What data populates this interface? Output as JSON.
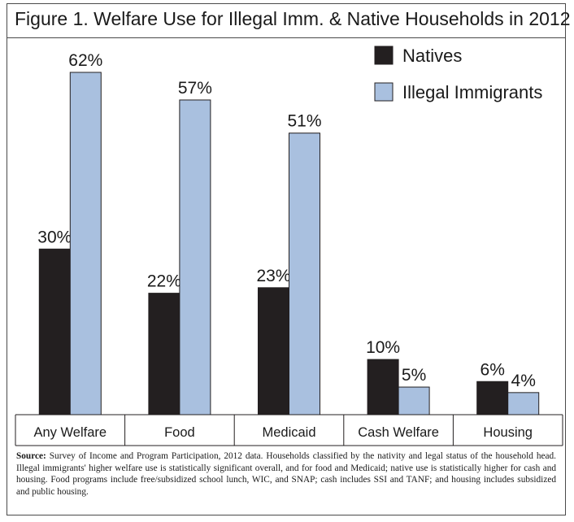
{
  "title": "Figure 1. Welfare Use for Illegal Imm. & Native Households in 2012",
  "source": {
    "label": "Source:",
    "text": "Survey of Income and Program Participation, 2012 data. Households classified by the nativity and legal status of the household head. Illegal immigrants' higher welfare use is statistically significant overall, and for food and Medicaid; native use is statistically higher for cash and housing. Food programs include free/subsidized school lunch, WIC, and SNAP; cash includes SSI and TANF; and housing includes subsidized and public housing."
  },
  "chart_data": {
    "type": "bar",
    "title": "Figure 1. Welfare Use for Illegal Imm. & Native Households in 2012",
    "categories": [
      "Any Welfare",
      "Food",
      "Medicaid",
      "Cash Welfare",
      "Housing"
    ],
    "series": [
      {
        "name": "Natives",
        "values": [
          30,
          22,
          23,
          10,
          6
        ],
        "labels": [
          "30%",
          "22%",
          "23%",
          "10%",
          "6%"
        ],
        "color": "#231f20"
      },
      {
        "name": "Illegal Immigrants",
        "values": [
          62,
          57,
          51,
          5,
          4
        ],
        "labels": [
          "62%",
          "57%",
          "51%",
          "5%",
          "4%"
        ],
        "color": "#a9c0df"
      }
    ],
    "ylim": [
      0,
      62
    ],
    "xlabel": "",
    "ylabel": "",
    "grid": false,
    "legend": "top-right"
  }
}
